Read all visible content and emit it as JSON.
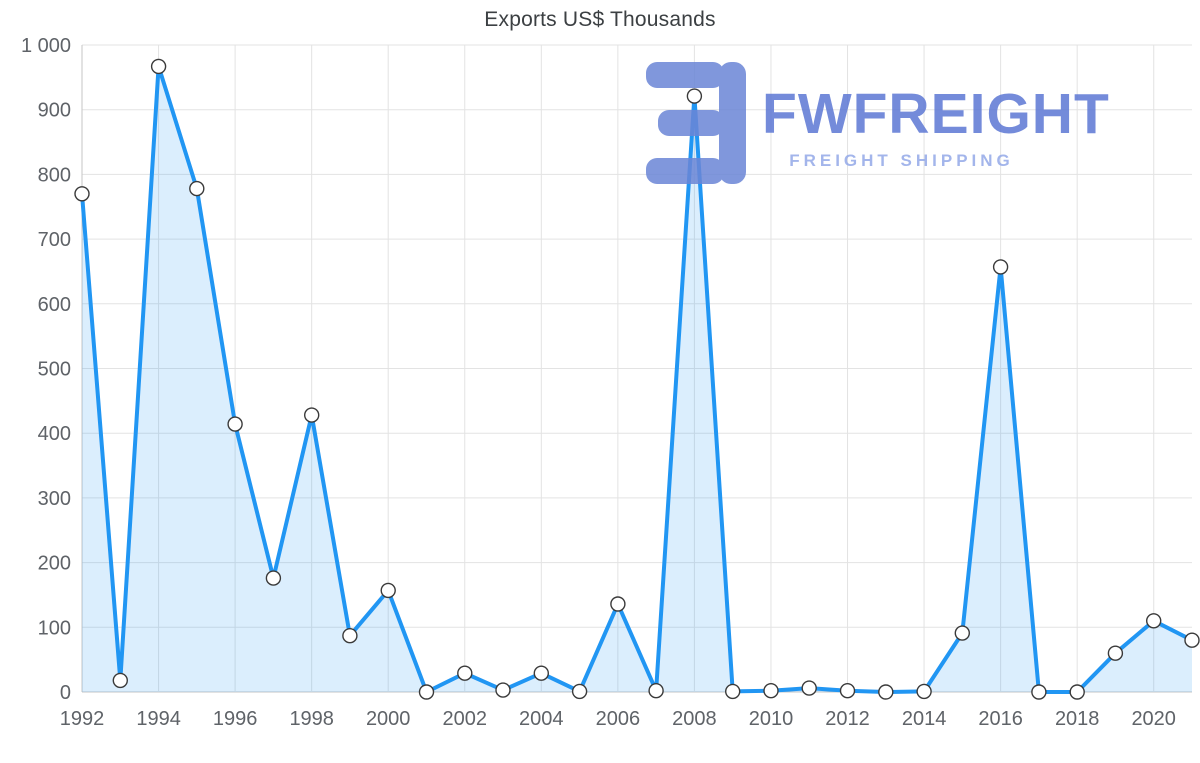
{
  "title": "Exports US$ Thousands",
  "watermark": {
    "brand": "FWFREIGHT",
    "tagline": "FREIGHT SHIPPING",
    "icon": "fwfreight-logo-icon"
  },
  "colors": {
    "line": "#2196F3",
    "area_fill": "#2196F3",
    "area_opacity": 0.16,
    "marker_fill": "#ffffff",
    "marker_stroke": "#3a3a3a",
    "grid": "#e3e3e3",
    "axis": "#c6c6c6",
    "tick_text": "#5f6368",
    "title_text": "#3c4043",
    "watermark_main": "#5c77d4",
    "watermark_tagline": "#93a9e8",
    "watermark_icon": "#6b86d6"
  },
  "chart_data": {
    "type": "area",
    "title": "Exports US$ Thousands",
    "xlabel": "",
    "ylabel": "",
    "x": [
      1992,
      1993,
      1994,
      1995,
      1996,
      1997,
      1998,
      1999,
      2000,
      2001,
      2002,
      2003,
      2004,
      2005,
      2006,
      2007,
      2008,
      2009,
      2010,
      2011,
      2012,
      2013,
      2014,
      2015,
      2016,
      2017,
      2018,
      2019,
      2020,
      2021
    ],
    "values": [
      770,
      18,
      967,
      778,
      414,
      176,
      428,
      87,
      157,
      0,
      29,
      3,
      29,
      1,
      136,
      2,
      921,
      1,
      2,
      6,
      2,
      0,
      1,
      91,
      657,
      0,
      0,
      60,
      110,
      80
    ],
    "ylim": [
      0,
      1000
    ],
    "y_ticks": [
      0,
      100,
      200,
      300,
      400,
      500,
      600,
      700,
      800,
      900,
      1000
    ],
    "y_tick_labels": [
      "0",
      "100",
      "200",
      "300",
      "400",
      "500",
      "600",
      "700",
      "800",
      "900",
      "1 000"
    ],
    "x_tick_years": [
      1992,
      1994,
      1996,
      1998,
      2000,
      2002,
      2004,
      2006,
      2008,
      2010,
      2012,
      2014,
      2016,
      2018,
      2020
    ],
    "grid": true,
    "legend": "none",
    "markers": true
  }
}
